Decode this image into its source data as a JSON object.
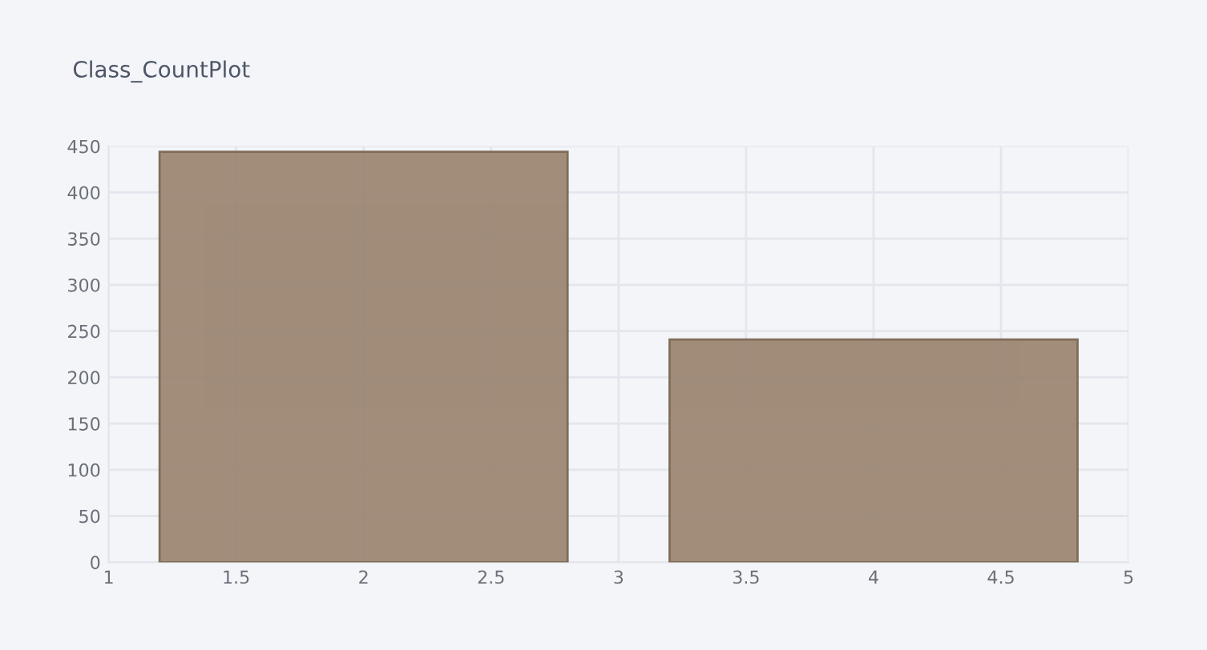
{
  "chart_data": {
    "type": "bar",
    "title": "Class_CountPlot",
    "x": [
      2,
      4
    ],
    "values": [
      444,
      241
    ],
    "color": "#9c8773",
    "xlim": [
      1,
      5
    ],
    "xticks": [
      1,
      1.5,
      2,
      2.5,
      3,
      3.5,
      4,
      4.5,
      5
    ],
    "ylim": [
      0,
      450
    ],
    "yticks": [
      0,
      50,
      100,
      150,
      200,
      250,
      300,
      350,
      400,
      450
    ],
    "grid": true
  }
}
